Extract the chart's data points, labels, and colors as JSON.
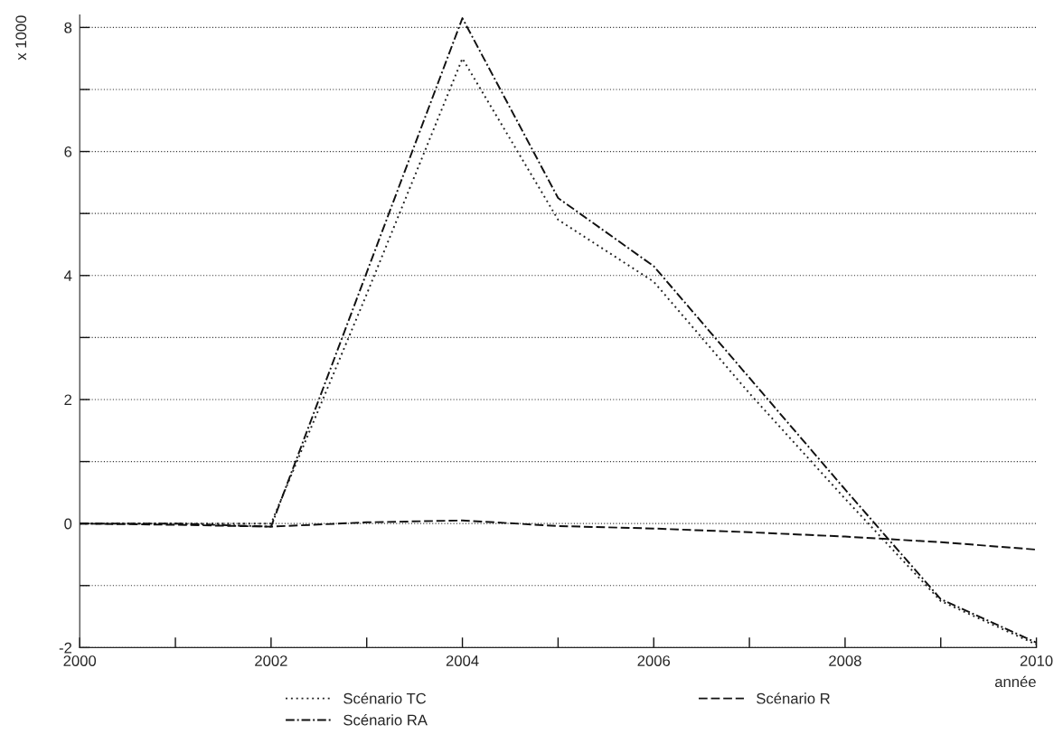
{
  "chart_data": {
    "type": "line",
    "x": [
      2000,
      2001,
      2002,
      2003,
      2004,
      2005,
      2006,
      2007,
      2008,
      2009,
      2010
    ],
    "series": [
      {
        "name": "Scénario TC",
        "color": "#222222",
        "line_style": "dotted",
        "values": [
          0,
          0,
          0,
          3.7,
          7.5,
          4.9,
          3.9,
          2.1,
          0.4,
          -1.25,
          -1.95
        ]
      },
      {
        "name": "Scénario RA",
        "color": "#111111",
        "line_style": "dashdot",
        "values": [
          0,
          0,
          -0.05,
          4.05,
          8.15,
          5.25,
          4.15,
          2.35,
          0.55,
          -1.22,
          -1.92
        ]
      },
      {
        "name": "Scénario R",
        "color": "#111111",
        "line_style": "dashed",
        "values": [
          0,
          -0.02,
          -0.05,
          0.02,
          0.05,
          -0.04,
          -0.08,
          -0.14,
          -0.21,
          -0.3,
          -0.42
        ]
      }
    ],
    "xlabel": "année",
    "ylabel": "x 1000",
    "xlim": [
      2000,
      2010
    ],
    "ylim": [
      -2,
      8.2
    ],
    "xticks": [
      2000,
      {
        "value": 2001,
        "label": null
      },
      2002,
      {
        "value": 2003,
        "label": null
      },
      2004,
      {
        "value": 2005,
        "label": null
      },
      2006,
      {
        "value": 2007,
        "label": null
      },
      2008,
      {
        "value": 2009,
        "label": null
      },
      2010
    ],
    "yticks": [
      -2,
      {
        "value": -1,
        "label": null
      },
      0,
      {
        "value": 1,
        "label": null
      },
      2,
      {
        "value": 3,
        "label": null
      },
      4,
      {
        "value": 5,
        "label": null
      },
      6,
      {
        "value": 7,
        "label": null
      },
      8
    ],
    "grid": "y",
    "legend": "bottom"
  }
}
